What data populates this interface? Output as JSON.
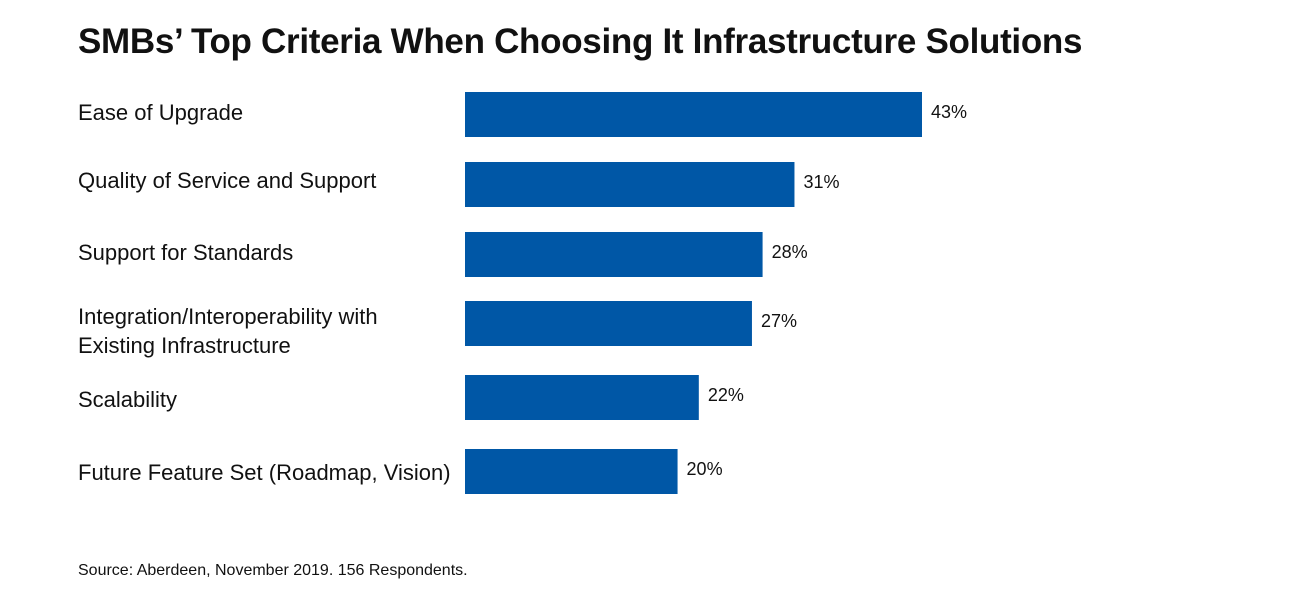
{
  "chart_data": {
    "type": "bar",
    "orientation": "horizontal",
    "title": "SMBs’ Top Criteria When Choosing It Infrastructure Solutions",
    "categories": [
      "Ease of Upgrade",
      "Quality of Service and Support",
      "Support for Standards",
      "Integration/Interoperability with Existing Infrastructure",
      "Scalability",
      "Future Feature Set (Roadmap, Vision)"
    ],
    "values": [
      43,
      31,
      28,
      27,
      22,
      20
    ],
    "value_labels": [
      "43%",
      "31%",
      "28%",
      "27%",
      "22%",
      "20%"
    ],
    "unit": "%",
    "xlim": [
      0,
      50
    ],
    "grid": false,
    "legend": "none",
    "bar_color": "#0057A6"
  },
  "source": "Source: Aberdeen, November 2019. 156 Respondents."
}
